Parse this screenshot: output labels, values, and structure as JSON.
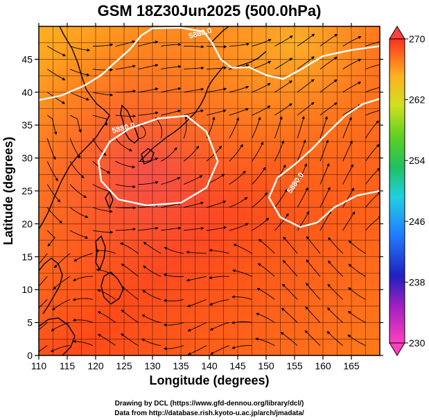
{
  "chart_data": {
    "type": "heatmap",
    "title": "GSM 18Z30Jun2025 (500.0hPa)",
    "xlabel": "Longitude (degrees)",
    "ylabel": "Latitude  (degrees)",
    "xlim": [
      110,
      170
    ],
    "ylim": [
      0,
      50
    ],
    "x_ticks": [
      110,
      115,
      120,
      125,
      130,
      135,
      140,
      145,
      150,
      155,
      160,
      165
    ],
    "y_ticks": [
      0,
      5,
      10,
      15,
      20,
      25,
      30,
      35,
      40,
      45
    ],
    "colorbar": {
      "min": 230,
      "max": 270,
      "ticks": [
        230,
        238,
        246,
        254,
        262,
        270
      ]
    },
    "contour_level_label": "5880.0",
    "contours": [
      {
        "name": "north-contour",
        "points": [
          [
            110,
            38.8
          ],
          [
            114,
            39.5
          ],
          [
            118,
            41.0
          ],
          [
            121,
            42.6
          ],
          [
            123,
            44.2
          ],
          [
            126,
            46.5
          ],
          [
            128,
            48.6
          ],
          [
            130,
            49.7
          ],
          [
            135,
            49.8
          ],
          [
            139,
            49.2
          ],
          [
            140.5,
            47.5
          ],
          [
            142,
            45.0
          ],
          [
            144,
            43.7
          ],
          [
            147,
            43.8
          ],
          [
            150,
            42.6
          ],
          [
            153,
            42.0
          ],
          [
            156,
            43.4
          ],
          [
            160,
            45.5
          ],
          [
            165,
            46.4
          ],
          [
            170,
            47.0
          ]
        ]
      },
      {
        "name": "central-high-contour",
        "points": [
          [
            129,
            22.8
          ],
          [
            124,
            23.7
          ],
          [
            121,
            26.5
          ],
          [
            120.5,
            29.5
          ],
          [
            122.5,
            32.5
          ],
          [
            126,
            34.5
          ],
          [
            131,
            36.0
          ],
          [
            136,
            36.4
          ],
          [
            139.5,
            34.0
          ],
          [
            141.5,
            29.5
          ],
          [
            139.5,
            25.5
          ],
          [
            135,
            23.2
          ],
          [
            129,
            22.8
          ]
        ]
      },
      {
        "name": "east-contour",
        "points": [
          [
            170,
            25.0
          ],
          [
            166,
            24.3
          ],
          [
            162,
            22.5
          ],
          [
            159,
            20.2
          ],
          [
            156,
            19.5
          ],
          [
            152.5,
            21.0
          ],
          [
            150.5,
            24.0
          ],
          [
            152,
            27.0
          ],
          [
            155,
            29.0
          ],
          [
            158,
            31.3
          ],
          [
            161,
            34.0
          ],
          [
            164,
            36.5
          ],
          [
            167,
            38.2
          ],
          [
            170,
            39.0
          ]
        ]
      }
    ]
  },
  "credits": {
    "line1": "Drawing by DCL (https://www.gfd-dennou.org/library/dcl/)",
    "line2": "Data from http://database.rish.kyoto-u.ac.jp/arch/jmadata/"
  },
  "colors": {
    "field_low": "#ff5a1a",
    "field_high": "#ff8c1a",
    "contour": "#ffffff",
    "grid": "#000000"
  }
}
